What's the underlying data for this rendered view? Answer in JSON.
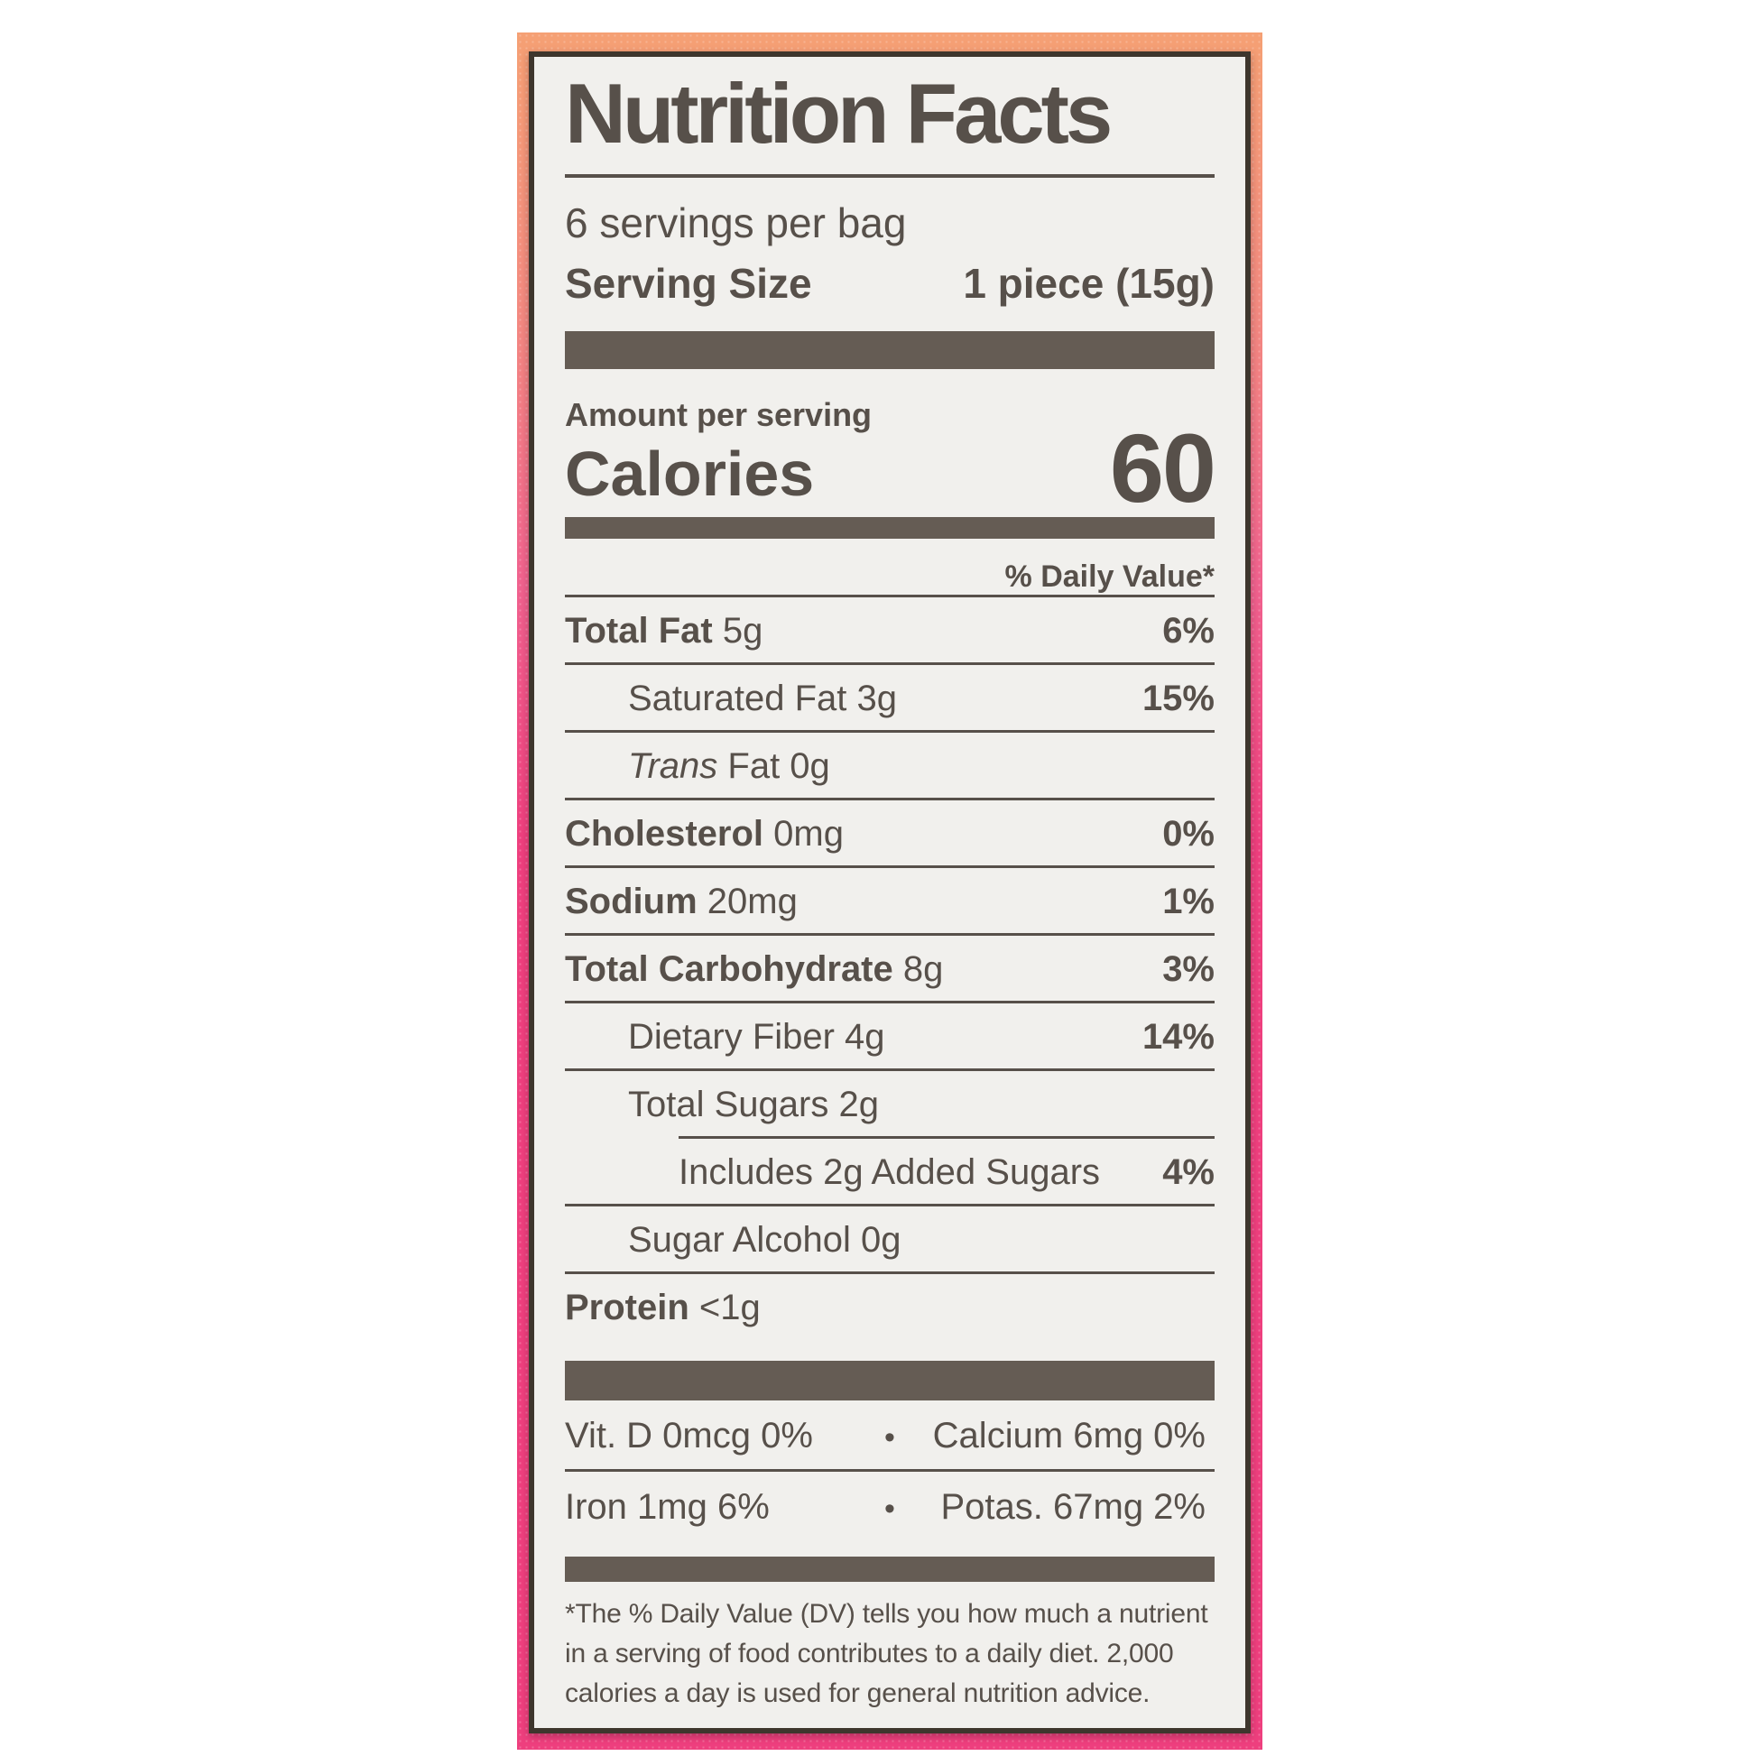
{
  "label": {
    "title": "Nutrition Facts",
    "servings_per_bag": "6 servings per bag",
    "serving_size_label": "Serving Size",
    "serving_size_value": "1 piece (15g)",
    "amount_per_serving": "Amount per serving",
    "calories_label": "Calories",
    "calories_value": "60",
    "daily_value_header": "% Daily Value*",
    "nutrients": [
      {
        "bold": "Total Fat",
        "rest": " 5g",
        "pct": "6%"
      },
      {
        "rest": "Saturated Fat 3g",
        "pct": "15%"
      },
      {
        "italic": "Trans",
        "rest": " Fat 0g"
      },
      {
        "bold": "Cholesterol",
        "rest": " 0mg",
        "pct": "0%"
      },
      {
        "bold": "Sodium",
        "rest": " 20mg",
        "pct": "1%"
      },
      {
        "bold": "Total Carbohydrate",
        "rest": " 8g",
        "pct": "3%"
      },
      {
        "rest": "Dietary Fiber 4g",
        "pct": "14%"
      },
      {
        "rest": "Total Sugars 2g"
      },
      {
        "rest": "Includes 2g Added Sugars",
        "pct": "4%"
      },
      {
        "rest": "Sugar Alcohol 0g"
      },
      {
        "bold": "Protein",
        "rest": " <1g"
      }
    ],
    "vitamins": {
      "bullet": "•",
      "rows": [
        {
          "left": "Vit. D 0mcg 0%",
          "right": "Calcium 6mg 0%"
        },
        {
          "left": "Iron 1mg 6%",
          "right": "Potas. 67mg 2%"
        }
      ]
    },
    "footnote": "*The % Daily Value (DV) tells you how much a nutrient in a serving of food contributes to a daily diet. 2,000 calories a day is used for general nutrition advice."
  },
  "colors": {
    "ink": "#57504a",
    "bar": "#655c54",
    "label_bg": "#f1f0ed",
    "label_border": "#3e362d",
    "bag_gradient_top": "#f5a074",
    "bag_gradient_bottom": "#ee3f7e"
  }
}
